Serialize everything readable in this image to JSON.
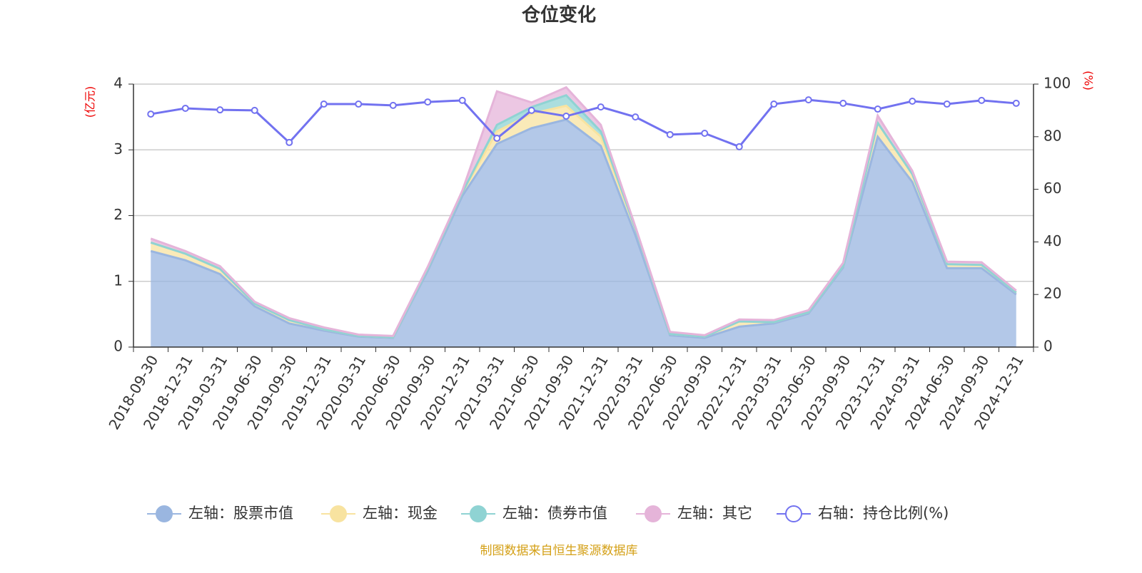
{
  "chart_data": {
    "type": "area",
    "stacked": true,
    "title": "仓位变化",
    "y_label": "(亿元)",
    "y2_label": "(%)",
    "categories": [
      "2018-09-30",
      "2018-12-31",
      "2019-03-31",
      "2019-06-30",
      "2019-09-30",
      "2019-12-31",
      "2020-03-31",
      "2020-06-30",
      "2020-09-30",
      "2020-12-31",
      "2021-03-31",
      "2021-06-30",
      "2021-09-30",
      "2021-12-31",
      "2022-03-31",
      "2022-06-30",
      "2022-09-30",
      "2022-12-31",
      "2023-03-31",
      "2023-06-30",
      "2023-09-30",
      "2023-12-31",
      "2024-03-31",
      "2024-06-30",
      "2024-09-30",
      "2024-12-31"
    ],
    "series": [
      {
        "name": "左轴：股票市值",
        "color": "#9ab6e0",
        "values": [
          1.46,
          1.32,
          1.11,
          0.62,
          0.36,
          0.25,
          0.16,
          0.14,
          1.16,
          2.3,
          3.09,
          3.33,
          3.46,
          3.06,
          1.7,
          0.18,
          0.14,
          0.31,
          0.36,
          0.51,
          1.21,
          3.2,
          2.51,
          1.2,
          1.2,
          0.8
        ]
      },
      {
        "name": "左轴：现金",
        "color": "#f8e3a0",
        "values": [
          0.13,
          0.1,
          0.08,
          0.04,
          0.05,
          0.02,
          0.01,
          0.01,
          0.03,
          0.05,
          0.19,
          0.22,
          0.21,
          0.14,
          0.1,
          0.02,
          0.02,
          0.08,
          0.02,
          0.02,
          0.02,
          0.21,
          0.12,
          0.06,
          0.05,
          0.03
        ]
      },
      {
        "name": "左轴：债券市值",
        "color": "#8fd3d3",
        "values": [
          0,
          0,
          0,
          0,
          0,
          0,
          0,
          0,
          0,
          0,
          0.1,
          0.1,
          0.16,
          0.08,
          0,
          0,
          0,
          0,
          0,
          0,
          0,
          0,
          0,
          0,
          0,
          0
        ]
      },
      {
        "name": "左轴：其它",
        "color": "#e5b4d9",
        "values": [
          0.06,
          0.04,
          0.04,
          0.03,
          0.03,
          0.03,
          0.02,
          0.02,
          0.03,
          0.03,
          0.51,
          0.07,
          0.12,
          0.1,
          0.03,
          0.03,
          0.02,
          0.03,
          0.03,
          0.03,
          0.05,
          0.11,
          0.05,
          0.04,
          0.04,
          0.03
        ]
      },
      {
        "name": "右轴：持仓比例(%)",
        "color": "#7272f0",
        "axis": "y2",
        "values": [
          88.6,
          90.8,
          90.2,
          90.0,
          77.8,
          92.4,
          92.4,
          91.9,
          93.2,
          93.8,
          79.4,
          90.0,
          87.8,
          91.3,
          87.5,
          80.8,
          81.3,
          76.2,
          92.4,
          94.0,
          92.7,
          90.5,
          93.5,
          92.4,
          93.8,
          92.7
        ]
      }
    ],
    "ylim": [
      0,
      4
    ],
    "yticks": [
      0,
      1,
      2,
      3,
      4
    ],
    "y2lim": [
      0,
      100
    ],
    "y2ticks": [
      0,
      20,
      40,
      60,
      80,
      100
    ],
    "grid": true,
    "legend_position": "bottom",
    "source": "制图数据来自恒生聚源数据库"
  }
}
